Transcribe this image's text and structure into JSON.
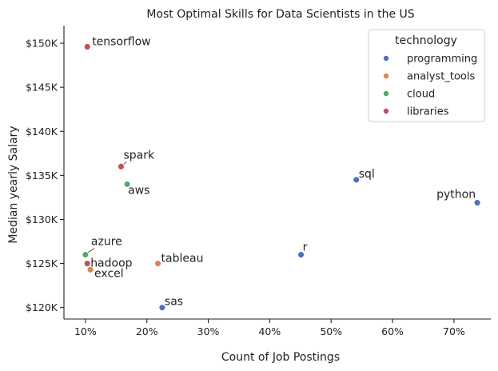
{
  "chart_data": {
    "type": "scatter",
    "title": "Most Optimal Skills for Data Scientists in the US",
    "xlabel": "Count of Job Postings",
    "ylabel": "Median yearly Salary",
    "xlim": [
      6.5,
      76
    ],
    "ylim": [
      118700,
      152000
    ],
    "x_ticks": [
      10,
      20,
      30,
      40,
      50,
      60,
      70
    ],
    "x_tick_labels": [
      "10%",
      "20%",
      "30%",
      "40%",
      "50%",
      "60%",
      "70%"
    ],
    "y_ticks": [
      120000,
      125000,
      130000,
      135000,
      140000,
      145000,
      150000
    ],
    "y_tick_labels": [
      "$120K",
      "$125K",
      "$130K",
      "$135K",
      "$140K",
      "$145K",
      "$150K"
    ],
    "grid": false,
    "legend": {
      "title": "technology",
      "placement": "top-right",
      "entries": [
        {
          "name": "programming",
          "color": "#4c72b0"
        },
        {
          "name": "analyst_tools",
          "color": "#dd8452"
        },
        {
          "name": "cloud",
          "color": "#55a868"
        },
        {
          "name": "libraries",
          "color": "#c44e52"
        }
      ]
    },
    "points": [
      {
        "label": "tensorflow",
        "x": 10.3,
        "y": 149600,
        "group": "libraries"
      },
      {
        "label": "spark",
        "x": 15.8,
        "y": 136000,
        "group": "libraries"
      },
      {
        "label": "aws",
        "x": 16.8,
        "y": 134000,
        "group": "cloud"
      },
      {
        "label": "sql",
        "x": 54.1,
        "y": 134500,
        "group": "programming"
      },
      {
        "label": "python",
        "x": 73.8,
        "y": 131900,
        "group": "programming"
      },
      {
        "label": "azure",
        "x": 10.0,
        "y": 126000,
        "group": "cloud"
      },
      {
        "label": "hadoop",
        "x": 10.3,
        "y": 125000,
        "group": "libraries"
      },
      {
        "label": "excel",
        "x": 10.8,
        "y": 124300,
        "group": "analyst_tools"
      },
      {
        "label": "tableau",
        "x": 21.8,
        "y": 125000,
        "group": "analyst_tools"
      },
      {
        "label": "r",
        "x": 45.1,
        "y": 126000,
        "group": "programming"
      },
      {
        "label": "sas",
        "x": 22.5,
        "y": 120000,
        "group": "programming"
      }
    ]
  }
}
